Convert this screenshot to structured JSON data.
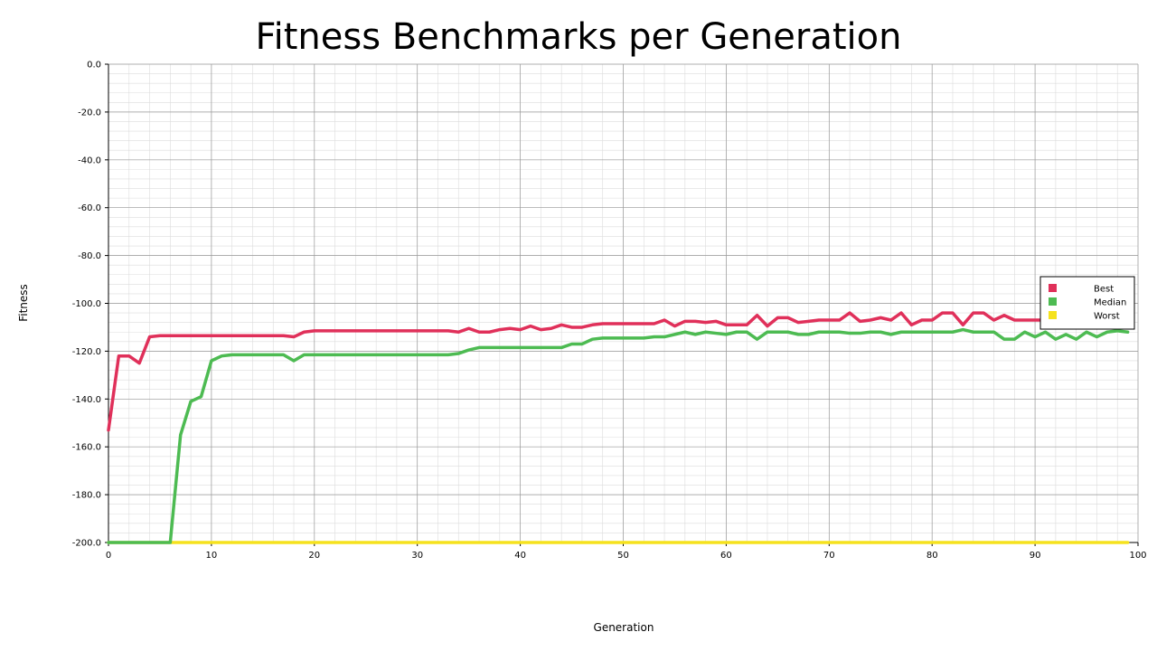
{
  "chart_data": {
    "type": "line",
    "title": "Fitness Benchmarks per Generation",
    "xlabel": "Generation",
    "ylabel": "Fitness",
    "xlim": [
      0,
      100
    ],
    "ylim": [
      -200,
      0
    ],
    "x_ticks": [
      0,
      10,
      20,
      30,
      40,
      50,
      60,
      70,
      80,
      90,
      100
    ],
    "y_ticks": [
      0,
      -20,
      -40,
      -60,
      -80,
      -100,
      -120,
      -140,
      -160,
      -180,
      -200
    ],
    "y_tick_labels": [
      "0.0",
      "-20.0",
      "-40.0",
      "-60.0",
      "-80.0",
      "-100.0",
      "-120.0",
      "-140.0",
      "-160.0",
      "-180.0",
      "-200.0"
    ],
    "grid": true,
    "legend_position": "right",
    "series": [
      {
        "name": "Best",
        "color": "#e0305a",
        "x": [
          0,
          1,
          2,
          3,
          4,
          5,
          6,
          7,
          8,
          9,
          10,
          11,
          12,
          13,
          14,
          15,
          16,
          17,
          18,
          19,
          20,
          21,
          22,
          23,
          24,
          25,
          26,
          27,
          28,
          29,
          30,
          31,
          32,
          33,
          34,
          35,
          36,
          37,
          38,
          39,
          40,
          41,
          42,
          43,
          44,
          45,
          46,
          47,
          48,
          49,
          50,
          51,
          52,
          53,
          54,
          55,
          56,
          57,
          58,
          59,
          60,
          61,
          62,
          63,
          64,
          65,
          66,
          67,
          68,
          69,
          70,
          71,
          72,
          73,
          74,
          75,
          76,
          77,
          78,
          79,
          80,
          81,
          82,
          83,
          84,
          85,
          86,
          87,
          88,
          89,
          90,
          91,
          92,
          93,
          94,
          95,
          96,
          97,
          98,
          99
        ],
        "values": [
          -153,
          -122,
          -122,
          -125,
          -114,
          -113.5,
          -113.5,
          -113.5,
          -113.5,
          -113.5,
          -113.5,
          -113.5,
          -113.5,
          -113.5,
          -113.5,
          -113.5,
          -113.5,
          -113.5,
          -114,
          -112,
          -111.5,
          -111.5,
          -111.5,
          -111.5,
          -111.5,
          -111.5,
          -111.5,
          -111.5,
          -111.5,
          -111.5,
          -111.5,
          -111.5,
          -111.5,
          -111.5,
          -112,
          -110.5,
          -112,
          -112,
          -111,
          -110.5,
          -111,
          -109.5,
          -111,
          -110.5,
          -109,
          -110,
          -110,
          -109,
          -108.5,
          -108.5,
          -108.5,
          -108.5,
          -108.5,
          -108.5,
          -107,
          -109.5,
          -107.5,
          -107.5,
          -108,
          -107.5,
          -109,
          -109,
          -109,
          -105,
          -109.5,
          -106,
          -106,
          -108,
          -107.5,
          -107,
          -107,
          -107,
          -104,
          -107.5,
          -107,
          -106,
          -107,
          -104,
          -109,
          -107,
          -107,
          -104,
          -104,
          -109,
          -104,
          -104,
          -107,
          -105,
          -107,
          -107,
          -107,
          -107,
          -107,
          -106,
          -105,
          -104,
          -107,
          -107,
          -107,
          -108
        ]
      },
      {
        "name": "Median",
        "color": "#4dbb52",
        "x": [
          0,
          1,
          2,
          3,
          4,
          5,
          6,
          7,
          8,
          9,
          10,
          11,
          12,
          13,
          14,
          15,
          16,
          17,
          18,
          19,
          20,
          21,
          22,
          23,
          24,
          25,
          26,
          27,
          28,
          29,
          30,
          31,
          32,
          33,
          34,
          35,
          36,
          37,
          38,
          39,
          40,
          41,
          42,
          43,
          44,
          45,
          46,
          47,
          48,
          49,
          50,
          51,
          52,
          53,
          54,
          55,
          56,
          57,
          58,
          59,
          60,
          61,
          62,
          63,
          64,
          65,
          66,
          67,
          68,
          69,
          70,
          71,
          72,
          73,
          74,
          75,
          76,
          77,
          78,
          79,
          80,
          81,
          82,
          83,
          84,
          85,
          86,
          87,
          88,
          89,
          90,
          91,
          92,
          93,
          94,
          95,
          96,
          97,
          98,
          99
        ],
        "values": [
          -200,
          -200,
          -200,
          -200,
          -200,
          -200,
          -200,
          -155,
          -141,
          -139,
          -124,
          -122,
          -121.5,
          -121.5,
          -121.5,
          -121.5,
          -121.5,
          -121.5,
          -124,
          -121.5,
          -121.5,
          -121.5,
          -121.5,
          -121.5,
          -121.5,
          -121.5,
          -121.5,
          -121.5,
          -121.5,
          -121.5,
          -121.5,
          -121.5,
          -121.5,
          -121.5,
          -121,
          -119.5,
          -118.5,
          -118.5,
          -118.5,
          -118.5,
          -118.5,
          -118.5,
          -118.5,
          -118.5,
          -118.5,
          -117,
          -117,
          -115,
          -114.5,
          -114.5,
          -114.5,
          -114.5,
          -114.5,
          -114,
          -114,
          -113,
          -112,
          -113,
          -112,
          -112.5,
          -113,
          -112,
          -112,
          -115,
          -112,
          -112,
          -112,
          -113,
          -113,
          -112,
          -112,
          -112,
          -112.5,
          -112.5,
          -112,
          -112,
          -113,
          -112,
          -112,
          -112,
          -112,
          -112,
          -112,
          -111,
          -112,
          -112,
          -112,
          -115,
          -115,
          -112,
          -114,
          -112,
          -115,
          -113,
          -115,
          -112,
          -114,
          -112,
          -111.5,
          -112
        ]
      },
      {
        "name": "Worst",
        "color": "#f5e21e",
        "x": [
          0,
          99
        ],
        "values": [
          -200,
          -200
        ]
      }
    ]
  }
}
